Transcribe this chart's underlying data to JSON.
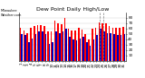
{
  "title": "Dew Point Daily High/Low",
  "background_color": "#ffffff",
  "plot_background": "#ffffff",
  "high_color": "#ff0000",
  "low_color": "#0000bb",
  "ylim": [
    0,
    90
  ],
  "yticks": [
    10,
    20,
    30,
    40,
    50,
    60,
    70,
    80
  ],
  "ytick_labels": [
    "10",
    "20",
    "30",
    "40",
    "50",
    "60",
    "70",
    "80"
  ],
  "days": [
    "1",
    "2",
    "3",
    "4",
    "5",
    "6",
    "7",
    "8",
    "9",
    "10",
    "11",
    "12",
    "13",
    "14",
    "15",
    "16",
    "17",
    "18",
    "19",
    "20",
    "21",
    "22",
    "23",
    "24",
    "25",
    "26",
    "27",
    "28",
    "29",
    "30",
    "31"
  ],
  "highs": [
    62,
    57,
    52,
    62,
    65,
    67,
    67,
    65,
    55,
    55,
    75,
    70,
    68,
    80,
    60,
    57,
    57,
    62,
    58,
    50,
    40,
    60,
    62,
    72,
    70,
    70,
    65,
    62,
    62,
    62,
    63
  ],
  "lows": [
    50,
    48,
    35,
    42,
    50,
    55,
    55,
    50,
    32,
    35,
    55,
    52,
    55,
    60,
    45,
    40,
    38,
    42,
    45,
    35,
    28,
    40,
    48,
    60,
    55,
    52,
    52,
    50,
    48,
    48,
    50
  ],
  "dashed_indices": [
    23,
    24
  ],
  "title_fontsize": 4.5,
  "tick_fontsize": 3.0,
  "left_label": "Milwaukee\nWeather.com",
  "bar_width": 0.42
}
